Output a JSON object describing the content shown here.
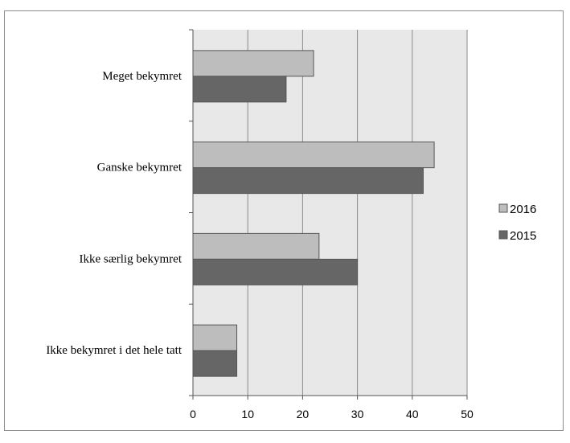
{
  "chart_data": {
    "type": "bar",
    "orientation": "horizontal",
    "title": "",
    "xlabel": "",
    "ylabel": "",
    "categories": [
      "Meget bekymret",
      "Ganske bekymret",
      "Ikke særlig bekymret",
      "Ikke bekymret i det hele tatt"
    ],
    "series": [
      {
        "name": "2016",
        "color": "#bdbdbd",
        "values": [
          22,
          44,
          23,
          8
        ]
      },
      {
        "name": "2015",
        "color": "#666666",
        "values": [
          17,
          42,
          30,
          8
        ]
      }
    ],
    "xlim": [
      0,
      50
    ],
    "xticks": [
      0,
      10,
      20,
      30,
      40,
      50
    ],
    "grid": true,
    "plot_background": "#e8e8e8",
    "legend_position": "right"
  }
}
